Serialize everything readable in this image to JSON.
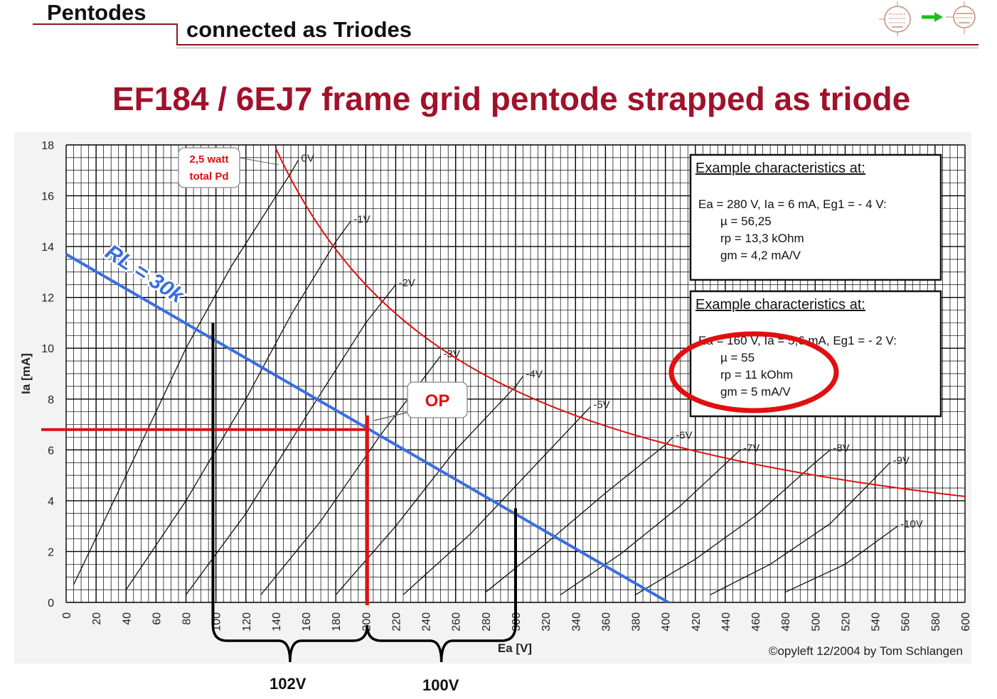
{
  "header": {
    "title": "Pentodes",
    "subtitle": "connected as Triodes"
  },
  "main_title": "EF184 / 6EJ7 frame grid pentode strapped as triode",
  "colors": {
    "title": "#a0122a",
    "pd_curve": "#e01010",
    "load_line": "#3a6ee0",
    "op_lines": "#e01010",
    "highlight_circle": "#e01010"
  },
  "footer": {
    "label_left": "102V",
    "label_right": "100V"
  },
  "chart_data": {
    "type": "line",
    "xlabel": "Ea [V]",
    "ylabel": "Ia [mA]",
    "xlim": [
      0,
      600
    ],
    "ylim": [
      0,
      18
    ],
    "xticks": [
      "0",
      "20",
      "40",
      "60",
      "80",
      "100",
      "120",
      "140",
      "160",
      "180",
      "200",
      "220",
      "240",
      "260",
      "280",
      "300",
      "320",
      "340",
      "360",
      "380",
      "400",
      "420",
      "440",
      "460",
      "480",
      "500",
      "520",
      "540",
      "560",
      "580",
      "600"
    ],
    "yticks": [
      "0",
      "2",
      "4",
      "6",
      "8",
      "10",
      "12",
      "14",
      "16",
      "18"
    ],
    "grid": true,
    "copyright": "©opyleft 12/2004 by Tom Schlangen",
    "series": [
      {
        "name": "0V",
        "points": [
          [
            5,
            0.7
          ],
          [
            40,
            5
          ],
          [
            80,
            10
          ],
          [
            110,
            13.2
          ],
          [
            150,
            16.9
          ],
          [
            155,
            17.4
          ]
        ]
      },
      {
        "name": "-1V",
        "points": [
          [
            40,
            0.5
          ],
          [
            80,
            4
          ],
          [
            120,
            8
          ],
          [
            150,
            11.3
          ],
          [
            180,
            14.2
          ],
          [
            190,
            15
          ]
        ]
      },
      {
        "name": "-2V",
        "points": [
          [
            80,
            0.3
          ],
          [
            120,
            3.5
          ],
          [
            160,
            7.3
          ],
          [
            200,
            11
          ],
          [
            220,
            12.5
          ]
        ]
      },
      {
        "name": "-3V",
        "points": [
          [
            130,
            0.3
          ],
          [
            170,
            3.2
          ],
          [
            210,
            6.6
          ],
          [
            250,
            9.7
          ]
        ]
      },
      {
        "name": "-4V",
        "points": [
          [
            180,
            0.3
          ],
          [
            220,
            3
          ],
          [
            260,
            6
          ],
          [
            300,
            8.5
          ],
          [
            305,
            8.9
          ]
        ]
      },
      {
        "name": "-5V",
        "points": [
          [
            225,
            0.3
          ],
          [
            270,
            2.7
          ],
          [
            310,
            5.2
          ],
          [
            350,
            7.7
          ]
        ]
      },
      {
        "name": "-6V",
        "points": [
          [
            280,
            0.4
          ],
          [
            320,
            2.3
          ],
          [
            360,
            4.3
          ],
          [
            400,
            6.2
          ],
          [
            405,
            6.5
          ]
        ]
      },
      {
        "name": "-7V",
        "points": [
          [
            330,
            0.3
          ],
          [
            370,
            1.9
          ],
          [
            410,
            3.8
          ],
          [
            450,
            6
          ]
        ]
      },
      {
        "name": "-8V",
        "points": [
          [
            380,
            0.3
          ],
          [
            420,
            1.7
          ],
          [
            460,
            3.4
          ],
          [
            500,
            5.5
          ],
          [
            510,
            6
          ]
        ]
      },
      {
        "name": "-9V",
        "points": [
          [
            430,
            0.3
          ],
          [
            470,
            1.5
          ],
          [
            510,
            3.1
          ],
          [
            550,
            5.5
          ]
        ]
      },
      {
        "name": "-10V",
        "points": [
          [
            480,
            0.4
          ],
          [
            520,
            1.5
          ],
          [
            555,
            3
          ]
        ]
      },
      {
        "name": "2,5 watt total Pd",
        "points": [
          [
            140,
            17.86
          ],
          [
            160,
            15.63
          ],
          [
            180,
            13.89
          ],
          [
            200,
            12.5
          ],
          [
            225,
            11.11
          ],
          [
            250,
            10
          ],
          [
            280,
            8.93
          ],
          [
            320,
            7.81
          ],
          [
            360,
            6.94
          ],
          [
            400,
            6.25
          ],
          [
            450,
            5.56
          ],
          [
            500,
            5
          ],
          [
            550,
            4.55
          ],
          [
            600,
            4.17
          ]
        ]
      },
      {
        "name": "RL = 30k",
        "points": [
          [
            0,
            13.7
          ],
          [
            402,
            0
          ]
        ]
      }
    ],
    "operating_point": {
      "label": "OP",
      "x": 200,
      "y": 6.8
    },
    "load_line_label": "RL = 30k",
    "pd_label": "2,5 watt total Pd",
    "swing": {
      "left_x": 98,
      "center_x": 200,
      "right_x": 300,
      "left_y": 11,
      "right_y": 3.7
    },
    "info_boxes": [
      {
        "heading": "Example characteristics at:",
        "conditions": "Ea = 280 V, Ia = 6 mA, Eg1 = - 4 V:",
        "lines": [
          "µ   = 56,25",
          "rp  = 13,3 kOhm",
          "gm = 4,2 mA/V"
        ]
      },
      {
        "heading": "Example characteristics at:",
        "conditions": "Ea = 160 V, Ia = 5,6 mA, Eg1 = - 2 V:",
        "lines": [
          "µ   = 55",
          "rp  = 11 kOhm",
          "gm = 5 mA/V"
        ]
      }
    ]
  }
}
